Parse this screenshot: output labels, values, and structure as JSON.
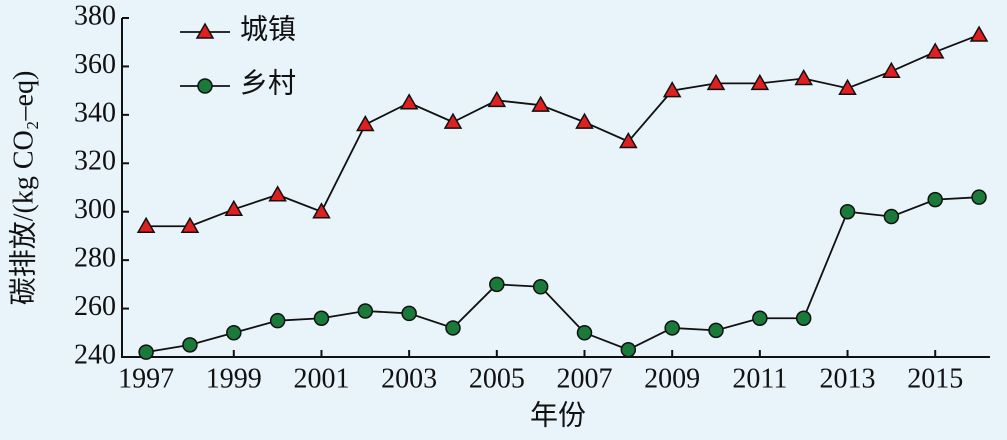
{
  "chart_data": {
    "type": "line",
    "x": [
      1997,
      1998,
      1999,
      2000,
      2001,
      2002,
      2003,
      2004,
      2005,
      2006,
      2007,
      2008,
      2009,
      2010,
      2011,
      2012,
      2013,
      2014,
      2015,
      2016
    ],
    "series": [
      {
        "name": "城镇",
        "color": "#e02020",
        "marker": "triangle",
        "values": [
          294,
          294,
          301,
          307,
          300,
          336,
          345,
          337,
          346,
          344,
          337,
          329,
          350,
          353,
          353,
          355,
          351,
          358,
          366,
          373
        ]
      },
      {
        "name": "乡村",
        "color": "#1a7a3a",
        "marker": "circle",
        "values": [
          242,
          245,
          250,
          255,
          256,
          259,
          258,
          252,
          270,
          269,
          250,
          243,
          252,
          251,
          256,
          256,
          300,
          298,
          305,
          306
        ]
      }
    ],
    "xlabel": "年份",
    "ylabel": "碳排放/(kg CO₂–eq)",
    "xlim": [
      1996.45,
      2016.25
    ],
    "xticks": [
      1997,
      1999,
      2001,
      2003,
      2005,
      2007,
      2009,
      2011,
      2013,
      2015
    ],
    "ylim": [
      240,
      380
    ],
    "yticks": [
      240,
      260,
      280,
      300,
      320,
      340,
      360,
      380
    ],
    "legend": "upper-left"
  }
}
